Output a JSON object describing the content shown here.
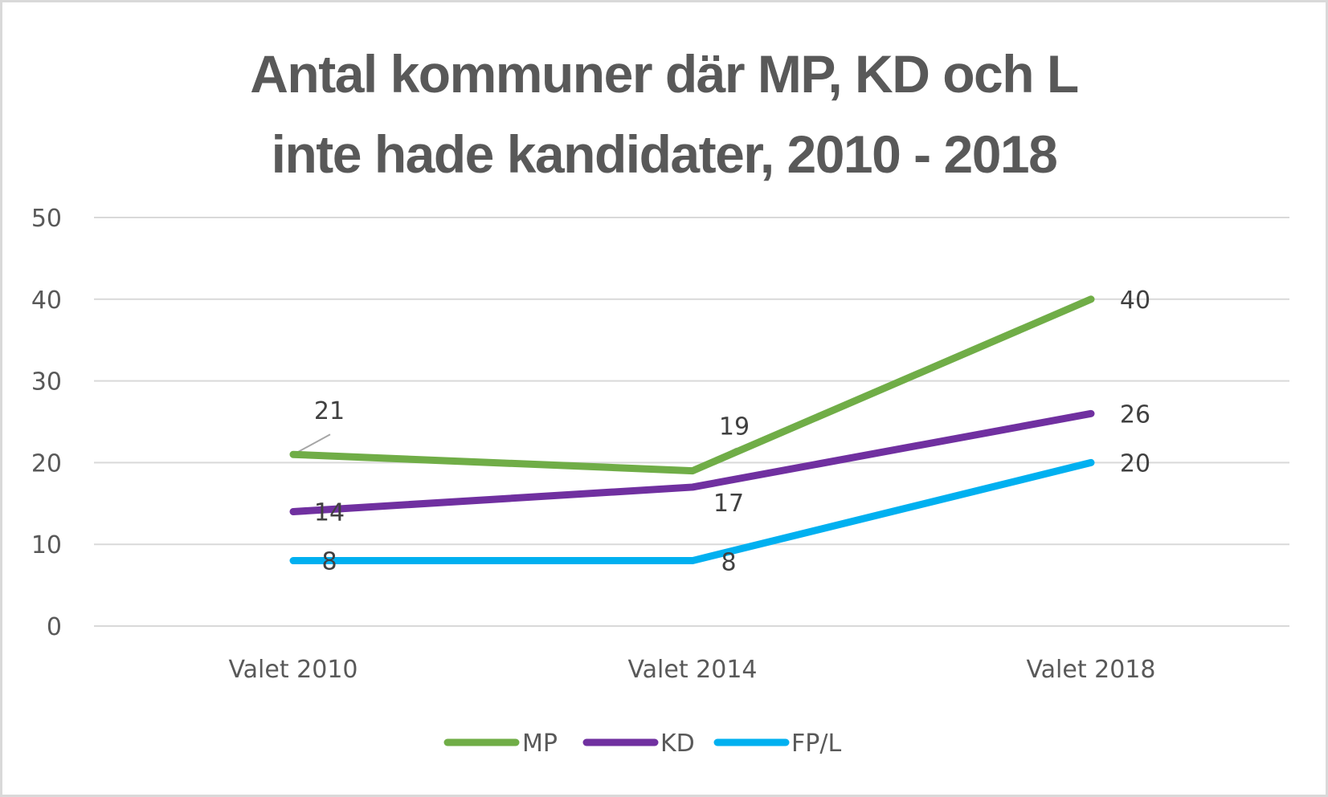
{
  "chart_data": {
    "type": "line",
    "title_lines": [
      "Antal kommuner där MP, KD och L",
      "inte hade kandidater, 2010 - 2018"
    ],
    "title": "Antal kommuner där MP, KD och L inte hade kandidater, 2010 - 2018",
    "xlabel": "",
    "ylabel": "",
    "categories": [
      "Valet 2010",
      "Valet 2014",
      "Valet 2018"
    ],
    "ylim": [
      0,
      50
    ],
    "yticks": [
      0,
      10,
      20,
      30,
      40,
      50
    ],
    "grid": true,
    "legend_position": "bottom",
    "series": [
      {
        "name": "MP",
        "values": [
          21,
          19,
          40
        ],
        "color": "#70ad47"
      },
      {
        "name": "KD",
        "values": [
          14,
          17,
          26
        ],
        "color": "#7030a0"
      },
      {
        "name": "FP/L",
        "values": [
          8,
          8,
          20
        ],
        "color": "#00b0f0"
      }
    ],
    "data_labels": true
  }
}
